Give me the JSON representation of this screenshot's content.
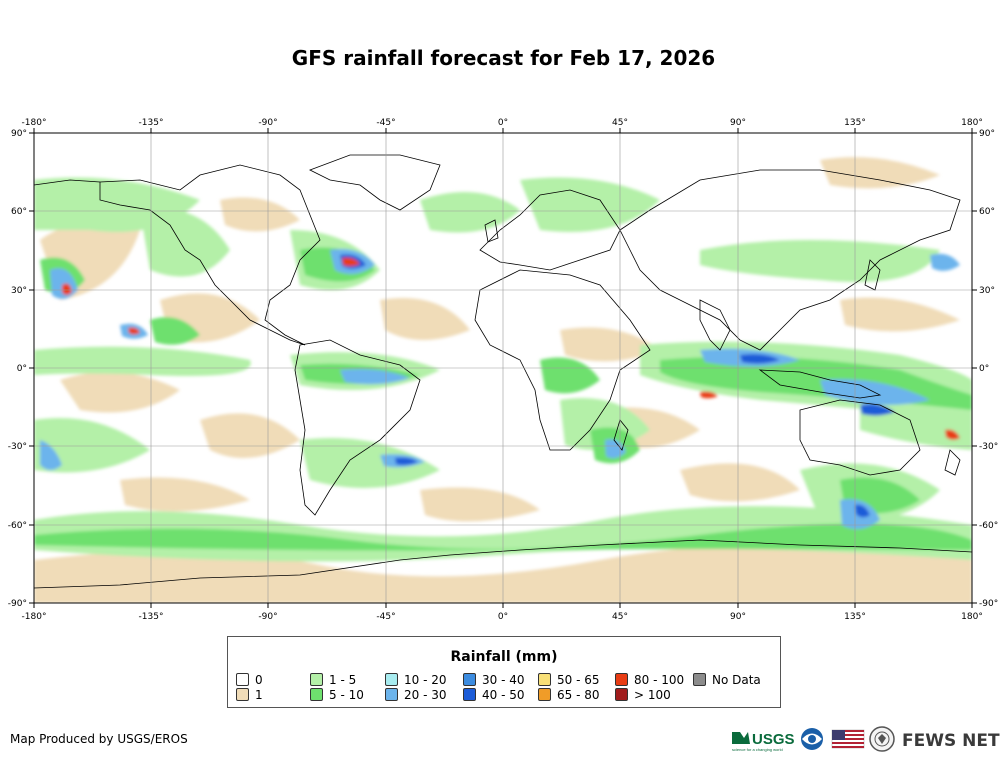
{
  "title": "GFS rainfall forecast for Feb 17, 2026",
  "map": {
    "lon_ticks": [
      "-180°",
      "-135°",
      "-90°",
      "-45°",
      "0°",
      "45°",
      "90°",
      "135°",
      "180°"
    ],
    "lat_ticks_left": [
      "90°",
      "60°",
      "30°",
      "0°",
      "-30°",
      "-60°",
      "-90°"
    ],
    "lat_ticks_right": [
      "90°",
      "60°",
      "30°",
      "0°",
      "-30°",
      "-60°",
      "-90°"
    ],
    "grid": true
  },
  "legend": {
    "title": "Rainfall (mm)",
    "items": [
      {
        "label": "0",
        "color": "#ffffff"
      },
      {
        "label": "1",
        "color": "#f0dcb8"
      },
      {
        "label": "1 - 5",
        "color": "#b4f0a8"
      },
      {
        "label": "5 - 10",
        "color": "#6ee06e"
      },
      {
        "label": "10 - 20",
        "color": "#a8ecf0"
      },
      {
        "label": "20 - 30",
        "color": "#6cb4ec"
      },
      {
        "label": "30 - 40",
        "color": "#3c8ce0"
      },
      {
        "label": "40 - 50",
        "color": "#1c5cd8"
      },
      {
        "label": "50 - 65",
        "color": "#f8e078"
      },
      {
        "label": "65 - 80",
        "color": "#f09c28"
      },
      {
        "label": "80 - 100",
        "color": "#e83c14"
      },
      {
        "label": "> 100",
        "color": "#a01c1c"
      },
      {
        "label": "No Data",
        "color": "#8c8c8c"
      }
    ]
  },
  "credit": "Map Produced by USGS/EROS",
  "logos": {
    "usgs": "USGS",
    "usgs_tagline": "science for a changing world",
    "fews": "FEWS NET",
    "icons": [
      "usgs-logo",
      "noaa-logo",
      "us-flag",
      "state-department-seal"
    ]
  }
}
